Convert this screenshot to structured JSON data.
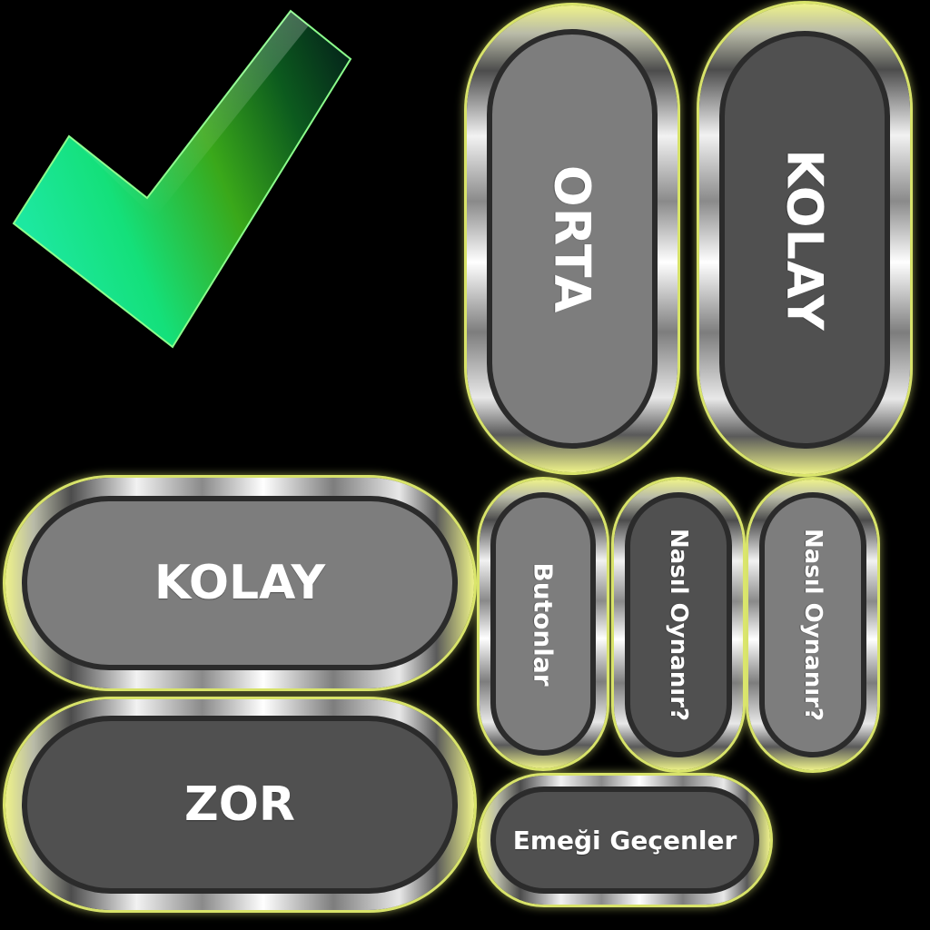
{
  "buttons": {
    "orta_vertical": "ORTA",
    "kolay_vertical": "KOLAY",
    "kolay": "KOLAY",
    "zor": "ZOR",
    "butonlar": "Butonlar",
    "nasil_oynanir_dark": "Nasıl Oynanır?",
    "nasil_oynanir_light": "Nasıl Oynanır?",
    "emegi_gecenler": "Emeği Geçenler"
  },
  "colors": {
    "check_green_light": "#17f0a0",
    "check_green": "#3fb31e",
    "check_green_dark": "#05301a",
    "check_outline": "#7cff7c",
    "face_light": "#7d7d7d",
    "face_dark": "#505050",
    "rim_glow": "#e6f078"
  }
}
